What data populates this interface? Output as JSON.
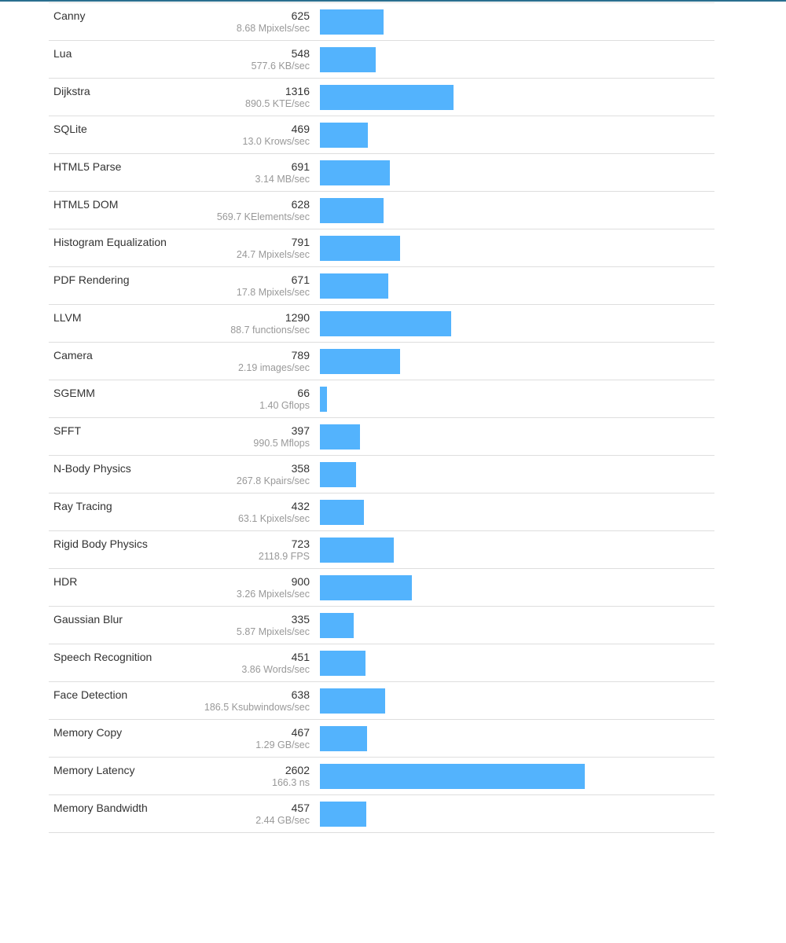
{
  "colors": {
    "bar": "#53b3fd",
    "accent": "#2a6f8f",
    "divider": "#dedede",
    "name_text": "#333333",
    "rate_text": "#999999"
  },
  "chart_data": {
    "type": "bar",
    "orientation": "horizontal",
    "max_value": 2602,
    "categories": [
      "Canny",
      "Lua",
      "Dijkstra",
      "SQLite",
      "HTML5 Parse",
      "HTML5 DOM",
      "Histogram Equalization",
      "PDF Rendering",
      "LLVM",
      "Camera",
      "SGEMM",
      "SFFT",
      "N-Body Physics",
      "Ray Tracing",
      "Rigid Body Physics",
      "HDR",
      "Gaussian Blur",
      "Speech Recognition",
      "Face Detection",
      "Memory Copy",
      "Memory Latency",
      "Memory Bandwidth"
    ],
    "values": [
      625,
      548,
      1316,
      469,
      691,
      628,
      791,
      671,
      1290,
      789,
      66,
      397,
      358,
      432,
      723,
      900,
      335,
      451,
      638,
      467,
      2602,
      457
    ]
  },
  "rows": [
    {
      "name": "Canny",
      "score": "625",
      "rate": "8.68 Mpixels/sec",
      "value": 625
    },
    {
      "name": "Lua",
      "score": "548",
      "rate": "577.6 KB/sec",
      "value": 548
    },
    {
      "name": "Dijkstra",
      "score": "1316",
      "rate": "890.5 KTE/sec",
      "value": 1316
    },
    {
      "name": "SQLite",
      "score": "469",
      "rate": "13.0 Krows/sec",
      "value": 469
    },
    {
      "name": "HTML5 Parse",
      "score": "691",
      "rate": "3.14 MB/sec",
      "value": 691
    },
    {
      "name": "HTML5 DOM",
      "score": "628",
      "rate": "569.7 KElements/sec",
      "value": 628
    },
    {
      "name": "Histogram Equalization",
      "score": "791",
      "rate": "24.7 Mpixels/sec",
      "value": 791
    },
    {
      "name": "PDF Rendering",
      "score": "671",
      "rate": "17.8 Mpixels/sec",
      "value": 671
    },
    {
      "name": "LLVM",
      "score": "1290",
      "rate": "88.7 functions/sec",
      "value": 1290
    },
    {
      "name": "Camera",
      "score": "789",
      "rate": "2.19 images/sec",
      "value": 789
    },
    {
      "name": "SGEMM",
      "score": "66",
      "rate": "1.40 Gflops",
      "value": 66
    },
    {
      "name": "SFFT",
      "score": "397",
      "rate": "990.5 Mflops",
      "value": 397
    },
    {
      "name": "N-Body Physics",
      "score": "358",
      "rate": "267.8 Kpairs/sec",
      "value": 358
    },
    {
      "name": "Ray Tracing",
      "score": "432",
      "rate": "63.1 Kpixels/sec",
      "value": 432
    },
    {
      "name": "Rigid Body Physics",
      "score": "723",
      "rate": "2118.9 FPS",
      "value": 723
    },
    {
      "name": "HDR",
      "score": "900",
      "rate": "3.26 Mpixels/sec",
      "value": 900
    },
    {
      "name": "Gaussian Blur",
      "score": "335",
      "rate": "5.87 Mpixels/sec",
      "value": 335
    },
    {
      "name": "Speech Recognition",
      "score": "451",
      "rate": "3.86 Words/sec",
      "value": 451
    },
    {
      "name": "Face Detection",
      "score": "638",
      "rate": "186.5 Ksubwindows/sec",
      "value": 638
    },
    {
      "name": "Memory Copy",
      "score": "467",
      "rate": "1.29 GB/sec",
      "value": 467
    },
    {
      "name": "Memory Latency",
      "score": "2602",
      "rate": "166.3 ns",
      "value": 2602
    },
    {
      "name": "Memory Bandwidth",
      "score": "457",
      "rate": "2.44 GB/sec",
      "value": 457
    }
  ]
}
